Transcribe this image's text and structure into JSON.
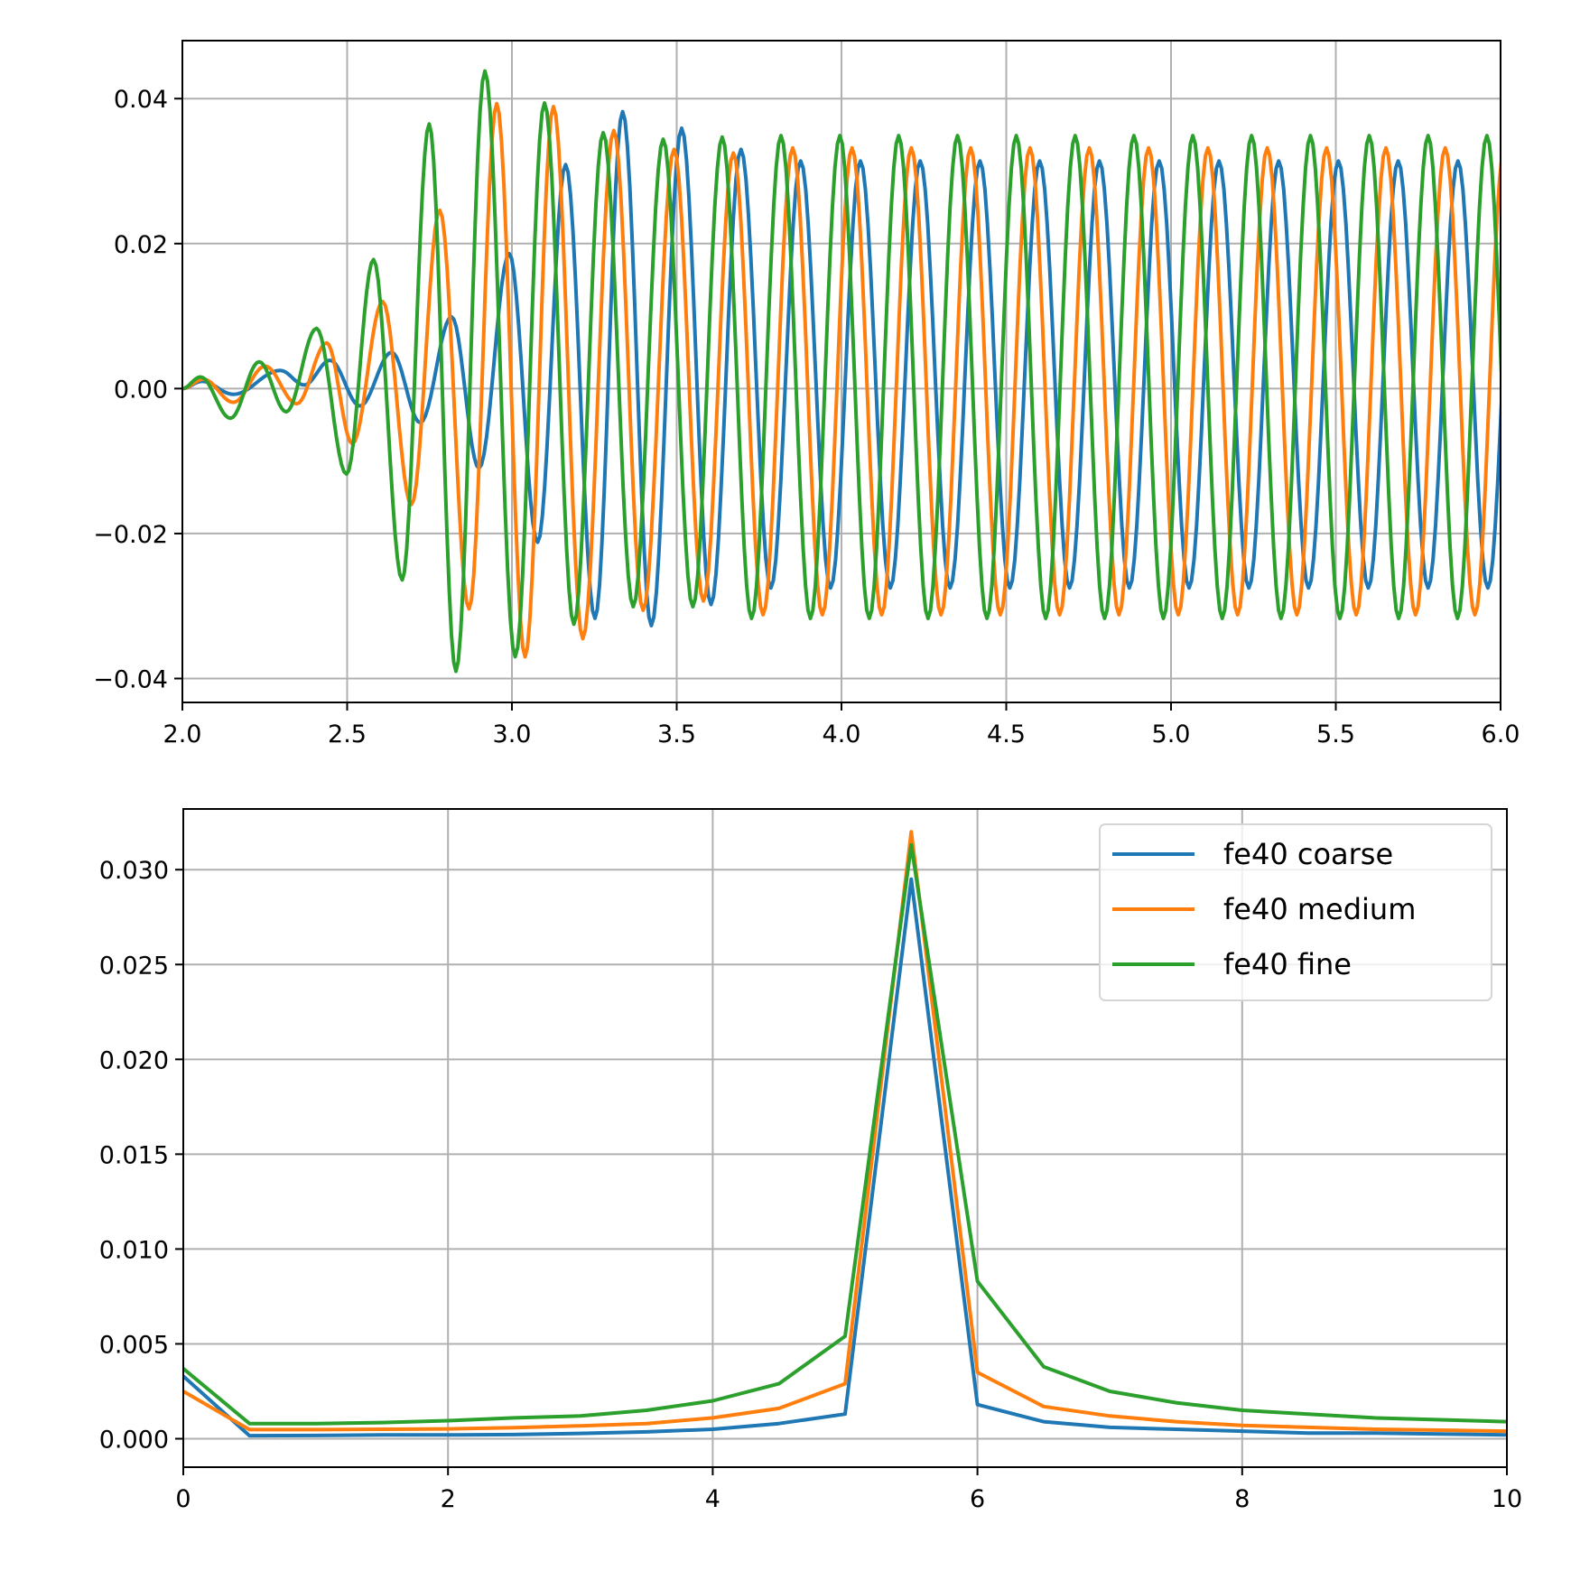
{
  "chart_data": [
    {
      "type": "line",
      "xlim": [
        2.0,
        6.0
      ],
      "ylim": [
        -0.0433,
        0.048
      ],
      "grid": true,
      "xticks": [
        "2.0",
        "2.5",
        "3.0",
        "3.5",
        "4.0",
        "4.5",
        "5.0",
        "5.5",
        "6.0"
      ],
      "xtick_values": [
        2.0,
        2.5,
        3.0,
        3.5,
        4.0,
        4.5,
        5.0,
        5.5,
        6.0
      ],
      "yticks": [
        "0.04",
        "0.02",
        "0.00",
        "−0.02",
        "−0.04"
      ],
      "ytick_values": [
        0.04,
        0.02,
        0.0,
        -0.02,
        -0.04
      ],
      "series": [
        {
          "color": "#1f77b4",
          "extrema": [
            [
              2.0,
              0
            ],
            [
              2.06,
              0.001
            ],
            [
              2.155,
              -0.0008
            ],
            [
              2.297,
              0.0025
            ],
            [
              2.37,
              0.0005
            ],
            [
              2.448,
              0.0039
            ],
            [
              2.539,
              -0.0024
            ],
            [
              2.635,
              0.005
            ],
            [
              2.722,
              -0.0047
            ],
            [
              2.817,
              0.0099
            ],
            [
              2.9,
              -0.011
            ],
            [
              2.992,
              0.0186
            ],
            [
              3.078,
              -0.0212
            ],
            [
              3.163,
              0.0309
            ],
            [
              3.252,
              -0.0317
            ],
            [
              3.336,
              0.0382
            ],
            [
              3.423,
              -0.0327
            ],
            [
              3.515,
              0.0359
            ],
            [
              3.604,
              -0.0298
            ],
            [
              3.695,
              0.033
            ]
          ],
          "steady": {
            "period": 0.1813,
            "peak": 0.0314,
            "trough": -0.0275
          }
        },
        {
          "color": "#ff7f0e",
          "extrema": [
            [
              2.0,
              0
            ],
            [
              2.064,
              0.0013
            ],
            [
              2.155,
              -0.0019
            ],
            [
              2.251,
              0.0031
            ],
            [
              2.347,
              -0.0021
            ],
            [
              2.438,
              0.0063
            ],
            [
              2.516,
              -0.0076
            ],
            [
              2.608,
              0.012
            ],
            [
              2.695,
              -0.016
            ],
            [
              2.781,
              0.0246
            ],
            [
              2.87,
              -0.0304
            ],
            [
              2.954,
              0.0393
            ],
            [
              3.04,
              -0.037
            ],
            [
              3.126,
              0.0389
            ],
            [
              3.215,
              -0.0345
            ],
            [
              3.309,
              0.0356
            ],
            [
              3.398,
              -0.0306
            ],
            [
              3.492,
              0.033
            ],
            [
              3.581,
              -0.0293
            ],
            [
              3.672,
              0.0325
            ]
          ],
          "steady": {
            "period": 0.18,
            "peak": 0.0332,
            "trough": -0.0312
          }
        },
        {
          "color": "#2ca02c",
          "extrema": [
            [
              2.0,
              0
            ],
            [
              2.055,
              0.0016
            ],
            [
              2.146,
              -0.0041
            ],
            [
              2.233,
              0.0037
            ],
            [
              2.315,
              -0.0032
            ],
            [
              2.407,
              0.0083
            ],
            [
              2.498,
              -0.0118
            ],
            [
              2.58,
              0.0178
            ],
            [
              2.667,
              -0.0264
            ],
            [
              2.749,
              0.0365
            ],
            [
              2.83,
              -0.039
            ],
            [
              2.918,
              0.0438
            ],
            [
              3.01,
              -0.037
            ],
            [
              3.099,
              0.0394
            ],
            [
              3.188,
              -0.0325
            ],
            [
              3.277,
              0.0353
            ],
            [
              3.368,
              -0.0301
            ],
            [
              3.459,
              0.0344
            ],
            [
              3.549,
              -0.0301
            ],
            [
              3.638,
              0.0347
            ]
          ],
          "steady": {
            "period": 0.1785,
            "peak": 0.0349,
            "trough": -0.0317
          }
        }
      ]
    },
    {
      "type": "line",
      "xlim": [
        0,
        10
      ],
      "ylim": [
        -0.0015,
        0.0332
      ],
      "grid": true,
      "legend": "top-right",
      "xticks": [
        "0",
        "2",
        "4",
        "6",
        "8",
        "10"
      ],
      "xtick_values": [
        0,
        2,
        4,
        6,
        8,
        10
      ],
      "yticks": [
        "0.030",
        "0.025",
        "0.020",
        "0.015",
        "0.010",
        "0.005",
        "0.000"
      ],
      "ytick_values": [
        0.03,
        0.025,
        0.02,
        0.015,
        0.01,
        0.005,
        0.0
      ],
      "x": [
        0,
        0.5,
        1,
        1.5,
        2,
        2.5,
        3,
        3.5,
        4,
        4.5,
        5,
        5.5,
        6,
        6.5,
        7,
        7.5,
        8,
        8.5,
        9,
        9.5,
        10
      ],
      "series": [
        {
          "name": "fe40 coarse",
          "color": "#1f77b4",
          "values": [
            0.0033,
            0.00016,
            0.00017,
            0.0002,
            0.0002,
            0.00022,
            0.00028,
            0.00036,
            0.0005,
            0.0008,
            0.0013,
            0.0295,
            0.0018,
            0.0009,
            0.0006,
            0.0005,
            0.0004,
            0.0003,
            0.0003,
            0.00025,
            0.0002
          ]
        },
        {
          "name": "fe40 medium",
          "color": "#ff7f0e",
          "values": [
            0.0025,
            0.00048,
            0.00048,
            0.0005,
            0.00052,
            0.00058,
            0.00068,
            0.0008,
            0.0011,
            0.0016,
            0.0029,
            0.032,
            0.0035,
            0.0017,
            0.0012,
            0.0009,
            0.0007,
            0.0006,
            0.0005,
            0.00045,
            0.0004
          ]
        },
        {
          "name": "fe40 fine",
          "color": "#2ca02c",
          "values": [
            0.0037,
            0.0008,
            0.0008,
            0.00085,
            0.00095,
            0.0011,
            0.0012,
            0.0015,
            0.002,
            0.0029,
            0.0054,
            0.0313,
            0.0083,
            0.0038,
            0.0025,
            0.0019,
            0.0015,
            0.0013,
            0.0011,
            0.001,
            0.0009
          ]
        }
      ]
    }
  ]
}
